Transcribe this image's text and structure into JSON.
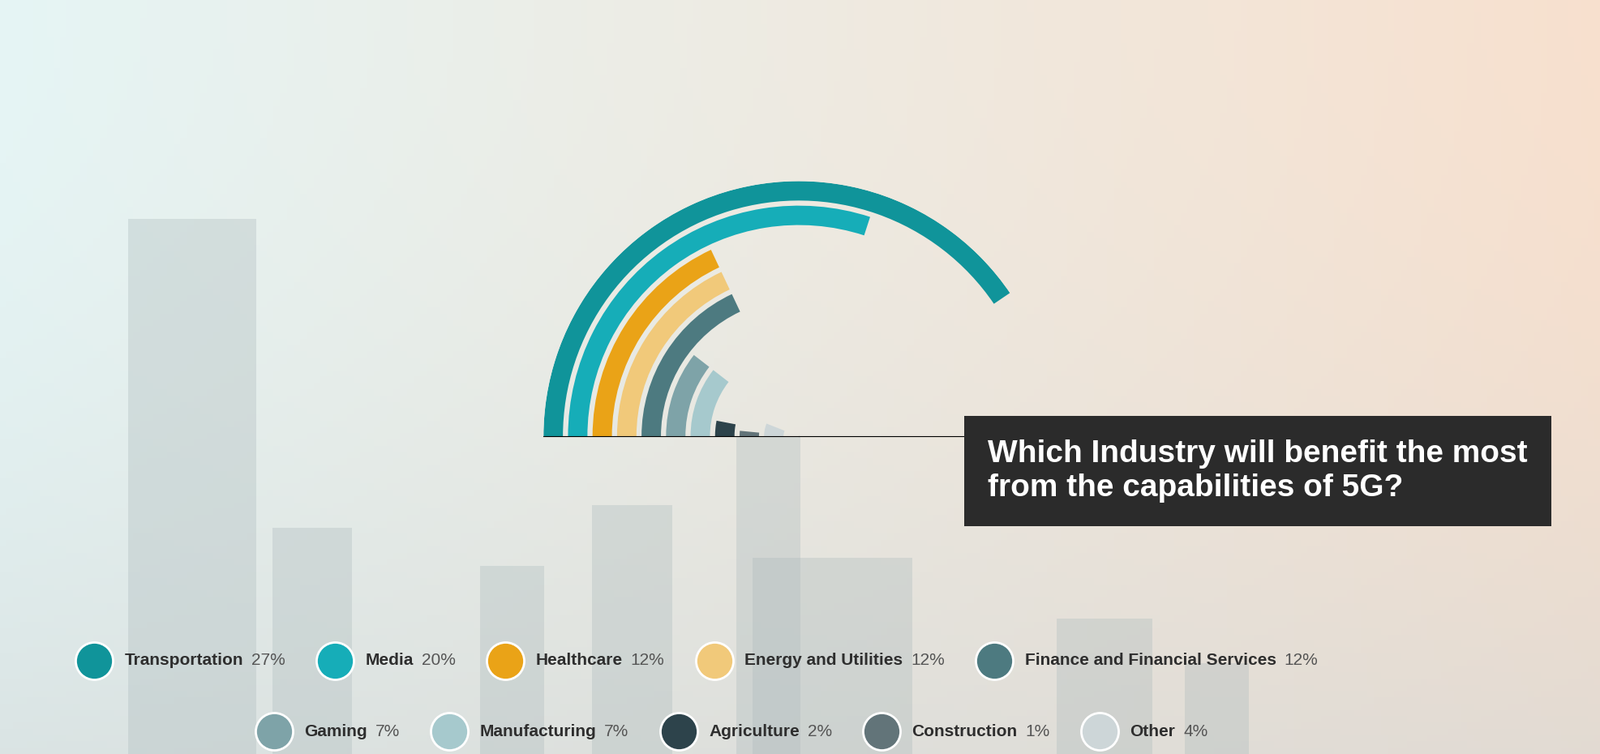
{
  "chart_data": {
    "type": "radial_bar",
    "title": "Which Industry will benefit the most from the capabilities of 5G?",
    "categories": [
      "Transportation",
      "Media",
      "Healthcare",
      "Energy and Utilities",
      "Finance and Financial Services",
      "Gaming",
      "Manufacturing",
      "Agriculture",
      "Construction",
      "Other"
    ],
    "values": [
      27,
      20,
      12,
      12,
      12,
      7,
      7,
      2,
      1,
      4
    ],
    "value_labels": [
      "27%",
      "20%",
      "12%",
      "12%",
      "12%",
      "7%",
      "7%",
      "2%",
      "1%",
      "4%"
    ],
    "colors": [
      "#10949a",
      "#16adb8",
      "#eaa317",
      "#f1c97a",
      "#4d7a80",
      "#7ea3a8",
      "#a6c9cd",
      "#2d434b",
      "#627479",
      "#cdd6d8"
    ],
    "legend": "bottom",
    "tick_labels": false
  }
}
